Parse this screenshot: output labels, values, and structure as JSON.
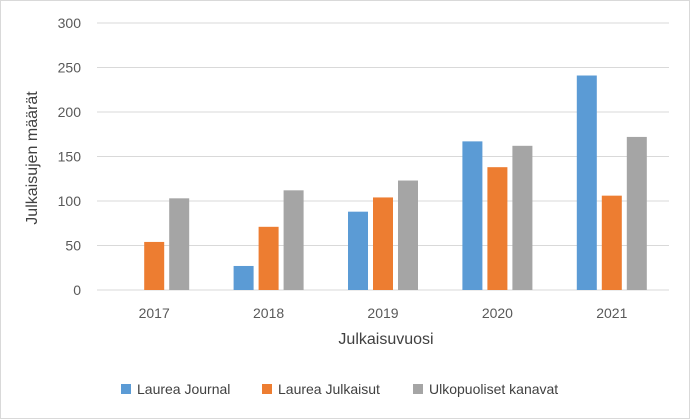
{
  "chart_data": {
    "type": "bar",
    "title": "",
    "xlabel": "Julkaisuvuosi",
    "ylabel": "Julkaisujen määrät",
    "categories": [
      "2017",
      "2018",
      "2019",
      "2020",
      "2021"
    ],
    "series": [
      {
        "name": "Laurea Journal",
        "color": "#5b9bd5",
        "values": [
          0,
          27,
          88,
          167,
          241
        ]
      },
      {
        "name": "Laurea Julkaisut",
        "color": "#ed7d31",
        "values": [
          54,
          71,
          104,
          138,
          106
        ]
      },
      {
        "name": "Ulkopuoliset kanavat",
        "color": "#a5a5a5",
        "values": [
          103,
          112,
          123,
          162,
          172
        ]
      }
    ],
    "ylim": [
      0,
      300
    ],
    "yticks": [
      0,
      50,
      100,
      150,
      200,
      250,
      300
    ],
    "grid": true,
    "legend_position": "bottom"
  }
}
